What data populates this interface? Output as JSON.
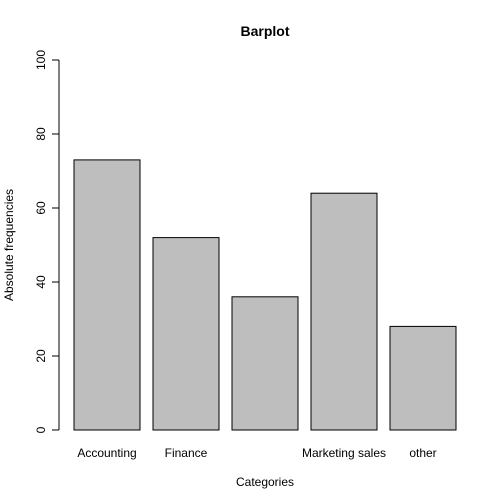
{
  "chart_data": {
    "type": "bar",
    "title": "Barplot",
    "xlabel": "Categories",
    "ylabel": "Absolute frequencies",
    "categories": [
      "Accounting",
      "Finance",
      "",
      "Marketing sales",
      "other"
    ],
    "values": [
      73,
      52,
      36,
      64,
      28
    ],
    "ylim": [
      0,
      100
    ],
    "yticks": [
      0,
      20,
      40,
      60,
      80,
      100
    ],
    "bar_color": "#bebebe",
    "border_color": "#000000",
    "grid": false,
    "legend": "none"
  }
}
